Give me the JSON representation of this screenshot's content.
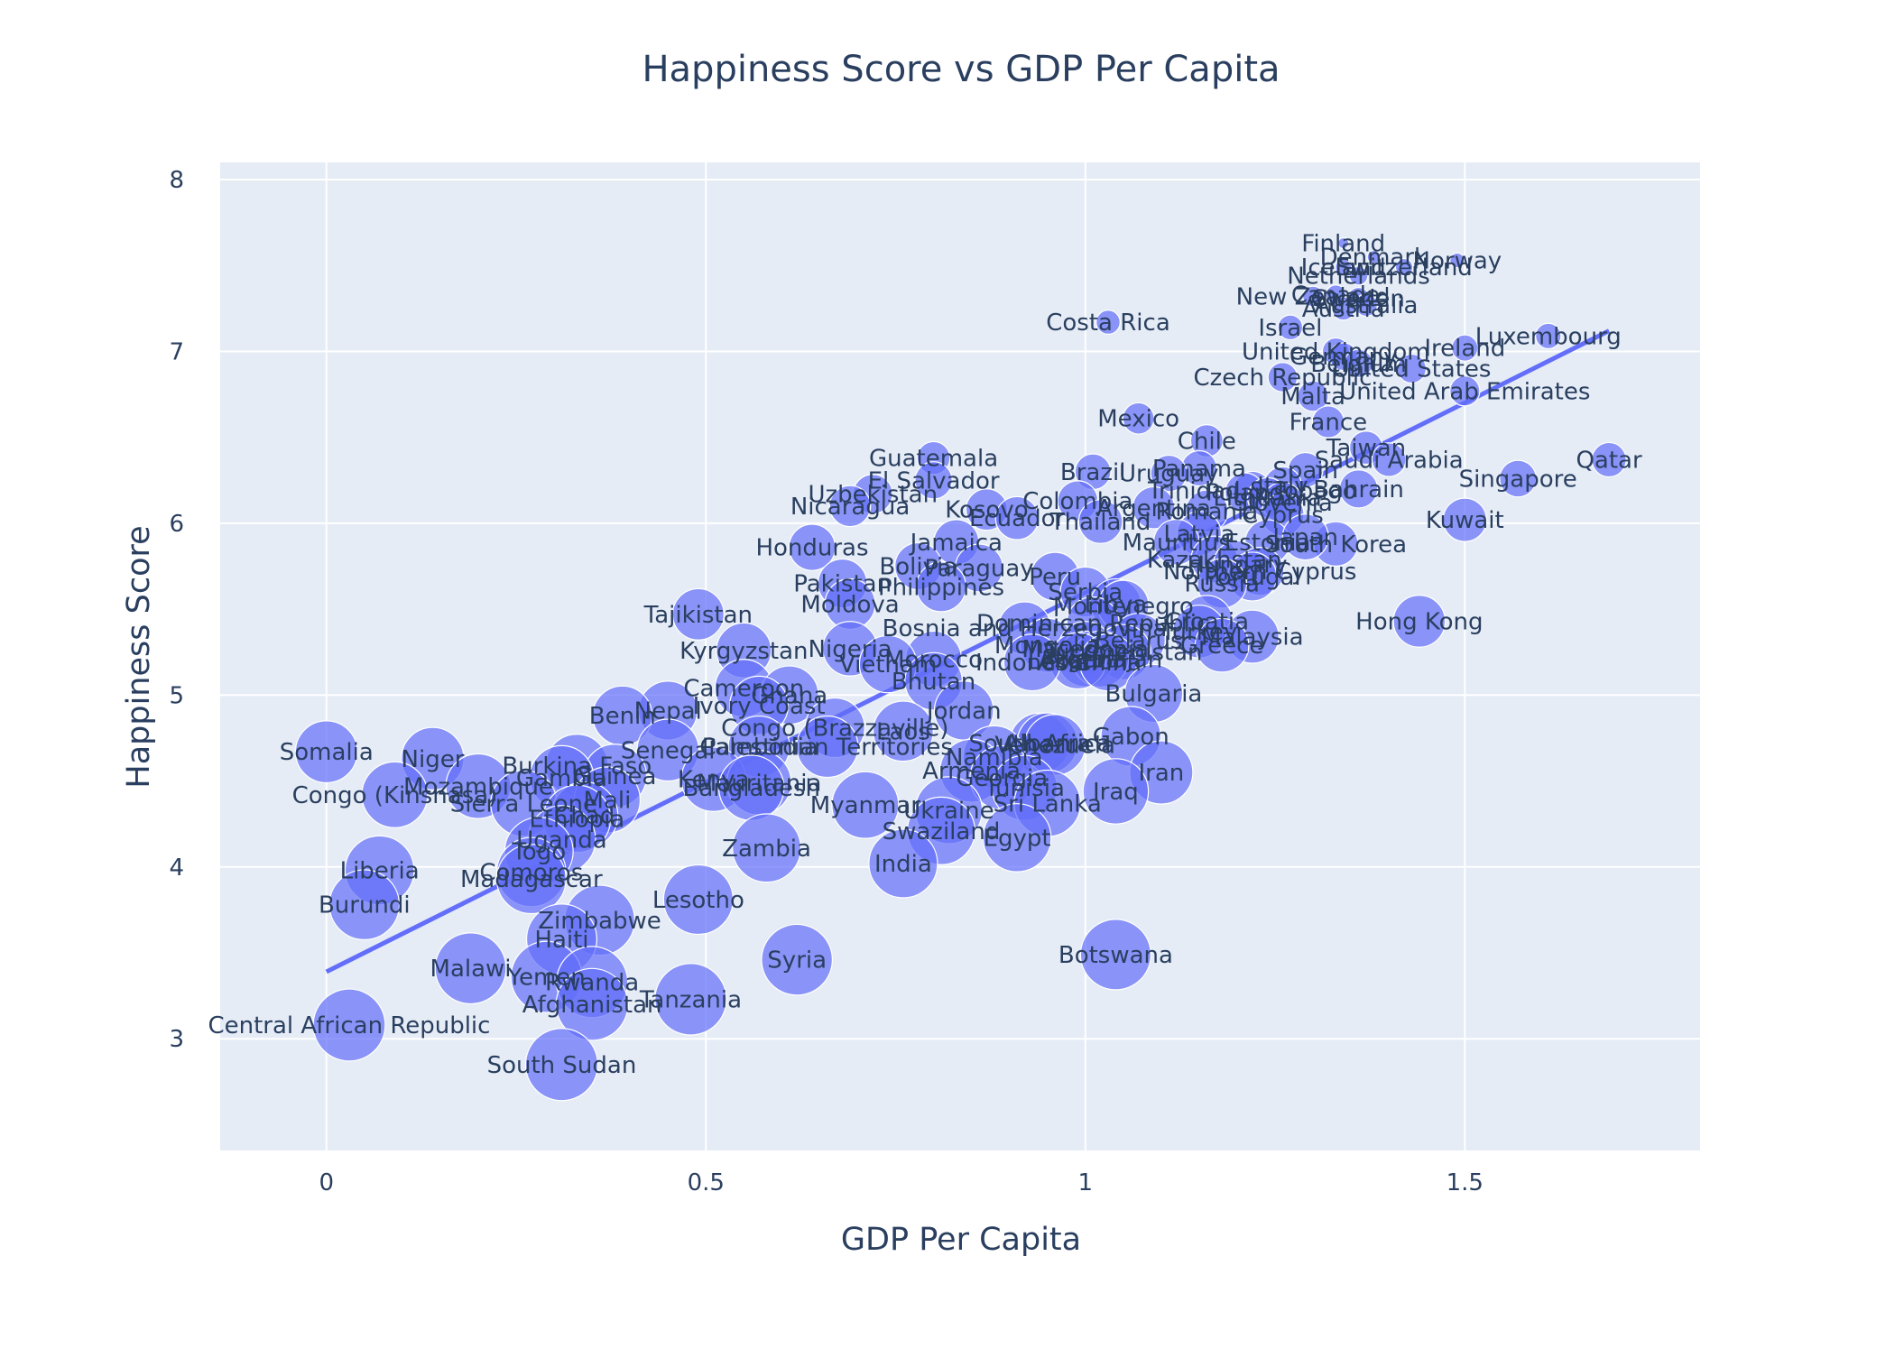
{
  "chart_data": {
    "type": "scatter",
    "title": "Happiness Score vs GDP Per Capita",
    "xlabel": "GDP Per Capita",
    "ylabel": "Happiness Score",
    "xlim": [
      -0.14,
      1.81
    ],
    "ylim": [
      2.35,
      8.1
    ],
    "x_ticks": [
      "0",
      "0.5",
      "1",
      "1.5"
    ],
    "x_tick_values": [
      0,
      0.5,
      1,
      1.5
    ],
    "y_ticks": [
      "3",
      "4",
      "5",
      "6",
      "7",
      "8"
    ],
    "y_tick_values": [
      3,
      4,
      5,
      6,
      7,
      8
    ],
    "grid": true,
    "marker_size_meaning": "larger bubbles for lower happiness ranks",
    "colors": {
      "plot_bg": "#e5ecf6",
      "grid": "#ffffff",
      "marker": "#636efa",
      "trendline": "#636efa",
      "text": "#2a3f5f"
    },
    "trendline": {
      "x": [
        0.0,
        1.69
      ],
      "y": [
        3.39,
        7.12
      ]
    },
    "points": [
      {
        "name": "Finland",
        "x": 1.34,
        "y": 7.63
      },
      {
        "name": "Denmark",
        "x": 1.38,
        "y": 7.55
      },
      {
        "name": "Norway",
        "x": 1.49,
        "y": 7.53
      },
      {
        "name": "Iceland",
        "x": 1.34,
        "y": 7.49
      },
      {
        "name": "Switzerland",
        "x": 1.42,
        "y": 7.49
      },
      {
        "name": "Netherlands",
        "x": 1.36,
        "y": 7.44
      },
      {
        "name": "Canada",
        "x": 1.33,
        "y": 7.33
      },
      {
        "name": "New Zealand",
        "x": 1.3,
        "y": 7.32
      },
      {
        "name": "Sweden",
        "x": 1.36,
        "y": 7.31
      },
      {
        "name": "Australia",
        "x": 1.37,
        "y": 7.27
      },
      {
        "name": "Austria",
        "x": 1.34,
        "y": 7.25
      },
      {
        "name": "Costa Rica",
        "x": 1.03,
        "y": 7.17
      },
      {
        "name": "Israel",
        "x": 1.27,
        "y": 7.14
      },
      {
        "name": "Luxembourg",
        "x": 1.61,
        "y": 7.09
      },
      {
        "name": "Ireland",
        "x": 1.5,
        "y": 7.02
      },
      {
        "name": "United Kingdom",
        "x": 1.33,
        "y": 7.0
      },
      {
        "name": "Germany",
        "x": 1.34,
        "y": 6.97
      },
      {
        "name": "Belgium",
        "x": 1.36,
        "y": 6.93
      },
      {
        "name": "United States",
        "x": 1.43,
        "y": 6.9
      },
      {
        "name": "Czech Republic",
        "x": 1.26,
        "y": 6.85
      },
      {
        "name": "United Arab Emirates",
        "x": 1.5,
        "y": 6.77
      },
      {
        "name": "Malta",
        "x": 1.3,
        "y": 6.74
      },
      {
        "name": "Mexico",
        "x": 1.07,
        "y": 6.61
      },
      {
        "name": "France",
        "x": 1.32,
        "y": 6.59
      },
      {
        "name": "Chile",
        "x": 1.16,
        "y": 6.48
      },
      {
        "name": "Guatemala",
        "x": 0.8,
        "y": 6.38
      },
      {
        "name": "Taiwan",
        "x": 1.37,
        "y": 6.44
      },
      {
        "name": "Saudi Arabia",
        "x": 1.4,
        "y": 6.37
      },
      {
        "name": "Qatar",
        "x": 1.69,
        "y": 6.37
      },
      {
        "name": "Spain",
        "x": 1.29,
        "y": 6.31
      },
      {
        "name": "Panama",
        "x": 1.15,
        "y": 6.32
      },
      {
        "name": "Brazil",
        "x": 1.01,
        "y": 6.3
      },
      {
        "name": "Uruguay",
        "x": 1.11,
        "y": 6.29
      },
      {
        "name": "Singapore",
        "x": 1.57,
        "y": 6.26
      },
      {
        "name": "El Salvador",
        "x": 0.8,
        "y": 6.25
      },
      {
        "name": "Italy",
        "x": 1.26,
        "y": 6.22
      },
      {
        "name": "Bahrain",
        "x": 1.36,
        "y": 6.2
      },
      {
        "name": "Trinidad & Tobago",
        "x": 1.22,
        "y": 6.19
      },
      {
        "name": "Poland",
        "x": 1.21,
        "y": 6.18
      },
      {
        "name": "Uzbekistan",
        "x": 0.72,
        "y": 6.17
      },
      {
        "name": "Lithuania",
        "x": 1.24,
        "y": 6.15
      },
      {
        "name": "Colombia",
        "x": 0.99,
        "y": 6.13
      },
      {
        "name": "Slovenia",
        "x": 1.26,
        "y": 6.12
      },
      {
        "name": "Nicaragua",
        "x": 0.69,
        "y": 6.1
      },
      {
        "name": "Kosovo",
        "x": 0.87,
        "y": 6.08
      },
      {
        "name": "Argentina",
        "x": 1.09,
        "y": 6.09
      },
      {
        "name": "Romania",
        "x": 1.16,
        "y": 6.07
      },
      {
        "name": "Cyprus",
        "x": 1.26,
        "y": 6.05
      },
      {
        "name": "Ecuador",
        "x": 0.91,
        "y": 6.03
      },
      {
        "name": "Kuwait",
        "x": 1.5,
        "y": 6.02
      },
      {
        "name": "Thailand",
        "x": 1.02,
        "y": 6.01
      },
      {
        "name": "Latvia",
        "x": 1.15,
        "y": 5.94
      },
      {
        "name": "South Korea",
        "x": 1.33,
        "y": 5.88
      },
      {
        "name": "Estonia",
        "x": 1.24,
        "y": 5.89
      },
      {
        "name": "Jamaica",
        "x": 0.83,
        "y": 5.89
      },
      {
        "name": "Mauritius",
        "x": 1.12,
        "y": 5.89
      },
      {
        "name": "Japan",
        "x": 1.29,
        "y": 5.92
      },
      {
        "name": "Honduras",
        "x": 0.64,
        "y": 5.86
      },
      {
        "name": "Kazakhstan",
        "x": 1.17,
        "y": 5.79
      },
      {
        "name": "Bolivia",
        "x": 0.78,
        "y": 5.75
      },
      {
        "name": "Hungary",
        "x": 1.2,
        "y": 5.76
      },
      {
        "name": "Paraguay",
        "x": 0.86,
        "y": 5.74
      },
      {
        "name": "Northern Cyprus",
        "x": 1.23,
        "y": 5.72
      },
      {
        "name": "Peru",
        "x": 0.96,
        "y": 5.69
      },
      {
        "name": "Portugal",
        "x": 1.22,
        "y": 5.69
      },
      {
        "name": "Pakistan",
        "x": 0.68,
        "y": 5.65
      },
      {
        "name": "Russia",
        "x": 1.18,
        "y": 5.65
      },
      {
        "name": "Philippines",
        "x": 0.81,
        "y": 5.63
      },
      {
        "name": "Serbia",
        "x": 1.0,
        "y": 5.6
      },
      {
        "name": "Moldova",
        "x": 0.69,
        "y": 5.53
      },
      {
        "name": "Libya",
        "x": 1.04,
        "y": 5.53
      },
      {
        "name": "Montenegro",
        "x": 1.05,
        "y": 5.52
      },
      {
        "name": "Tajikistan",
        "x": 0.49,
        "y": 5.47
      },
      {
        "name": "Croatia",
        "x": 1.16,
        "y": 5.43
      },
      {
        "name": "Hong Kong",
        "x": 1.44,
        "y": 5.43
      },
      {
        "name": "Dominican Republic",
        "x": 1.01,
        "y": 5.42
      },
      {
        "name": "Bosnia and Herzegovina",
        "x": 0.92,
        "y": 5.39
      },
      {
        "name": "Turkey",
        "x": 1.15,
        "y": 5.37
      },
      {
        "name": "Malaysia",
        "x": 1.22,
        "y": 5.34
      },
      {
        "name": "Belarus",
        "x": 1.07,
        "y": 5.32
      },
      {
        "name": "Greece",
        "x": 1.18,
        "y": 5.29
      },
      {
        "name": "Mongolia",
        "x": 0.95,
        "y": 5.29
      },
      {
        "name": "Macedonia",
        "x": 1.0,
        "y": 5.27
      },
      {
        "name": "Nigeria",
        "x": 0.69,
        "y": 5.27
      },
      {
        "name": "Kyrgyzstan",
        "x": 0.55,
        "y": 5.26
      },
      {
        "name": "Turkmenistan",
        "x": 1.05,
        "y": 5.25
      },
      {
        "name": "Algeria",
        "x": 1.0,
        "y": 5.21
      },
      {
        "name": "Morocco",
        "x": 0.8,
        "y": 5.21
      },
      {
        "name": "Azerbaijan",
        "x": 1.02,
        "y": 5.21
      },
      {
        "name": "Lebanon",
        "x": 0.99,
        "y": 5.2
      },
      {
        "name": "Indonesia",
        "x": 0.93,
        "y": 5.19
      },
      {
        "name": "China",
        "x": 1.03,
        "y": 5.19
      },
      {
        "name": "Vietnam",
        "x": 0.74,
        "y": 5.18
      },
      {
        "name": "Bhutan",
        "x": 0.8,
        "y": 5.08
      },
      {
        "name": "Cameroon",
        "x": 0.55,
        "y": 5.04
      },
      {
        "name": "Bulgaria",
        "x": 1.09,
        "y": 5.01
      },
      {
        "name": "Ghana",
        "x": 0.61,
        "y": 5.0
      },
      {
        "name": "Ivory Coast",
        "x": 0.57,
        "y": 4.94
      },
      {
        "name": "Nepal",
        "x": 0.45,
        "y": 4.91
      },
      {
        "name": "Jordan",
        "x": 0.84,
        "y": 4.91
      },
      {
        "name": "Benin",
        "x": 0.39,
        "y": 4.88
      },
      {
        "name": "Congo (Brazzaville)",
        "x": 0.67,
        "y": 4.81
      },
      {
        "name": "Gabon",
        "x": 1.06,
        "y": 4.76
      },
      {
        "name": "Laos",
        "x": 0.76,
        "y": 4.79
      },
      {
        "name": "South Africa",
        "x": 0.94,
        "y": 4.72
      },
      {
        "name": "Albania",
        "x": 0.95,
        "y": 4.72
      },
      {
        "name": "Venezuela",
        "x": 0.96,
        "y": 4.71
      },
      {
        "name": "Cambodia",
        "x": 0.57,
        "y": 4.7
      },
      {
        "name": "Palestinian Territories",
        "x": 0.66,
        "y": 4.7
      },
      {
        "name": "Senegal",
        "x": 0.45,
        "y": 4.68
      },
      {
        "name": "Somalia",
        "x": 0.0,
        "y": 4.67
      },
      {
        "name": "Namibia",
        "x": 0.88,
        "y": 4.64
      },
      {
        "name": "Niger",
        "x": 0.14,
        "y": 4.63
      },
      {
        "name": "Burkina Faso",
        "x": 0.33,
        "y": 4.59
      },
      {
        "name": "Armenia",
        "x": 0.85,
        "y": 4.56
      },
      {
        "name": "Iran",
        "x": 1.1,
        "y": 4.55
      },
      {
        "name": "Guinea",
        "x": 0.38,
        "y": 4.53
      },
      {
        "name": "Georgia",
        "x": 0.89,
        "y": 4.52
      },
      {
        "name": "Gambia",
        "x": 0.31,
        "y": 4.52
      },
      {
        "name": "Kenya",
        "x": 0.51,
        "y": 4.51
      },
      {
        "name": "Mauritania",
        "x": 0.57,
        "y": 4.49
      },
      {
        "name": "Mozambique",
        "x": 0.2,
        "y": 4.47
      },
      {
        "name": "Tunisia",
        "x": 0.92,
        "y": 4.46
      },
      {
        "name": "Bangladesh",
        "x": 0.56,
        "y": 4.46
      },
      {
        "name": "Iraq",
        "x": 1.04,
        "y": 4.44
      },
      {
        "name": "Congo (Kinshasa)",
        "x": 0.09,
        "y": 4.42
      },
      {
        "name": "Mali",
        "x": 0.37,
        "y": 4.39
      },
      {
        "name": "Sierra Leone",
        "x": 0.26,
        "y": 4.37
      },
      {
        "name": "Sri Lanka",
        "x": 0.95,
        "y": 4.37
      },
      {
        "name": "Myanmar",
        "x": 0.71,
        "y": 4.36
      },
      {
        "name": "Chad",
        "x": 0.34,
        "y": 4.3
      },
      {
        "name": "Ukraine",
        "x": 0.82,
        "y": 4.33
      },
      {
        "name": "Ethiopia",
        "x": 0.33,
        "y": 4.28
      },
      {
        "name": "Swaziland",
        "x": 0.81,
        "y": 4.21
      },
      {
        "name": "Uganda",
        "x": 0.31,
        "y": 4.16
      },
      {
        "name": "Egypt",
        "x": 0.91,
        "y": 4.17
      },
      {
        "name": "Zambia",
        "x": 0.58,
        "y": 4.11
      },
      {
        "name": "Togo",
        "x": 0.28,
        "y": 4.09
      },
      {
        "name": "India",
        "x": 0.76,
        "y": 4.02
      },
      {
        "name": "Liberia",
        "x": 0.07,
        "y": 3.98
      },
      {
        "name": "Comoros",
        "x": 0.27,
        "y": 3.97
      },
      {
        "name": "Madagascar",
        "x": 0.27,
        "y": 3.93
      },
      {
        "name": "Lesotho",
        "x": 0.49,
        "y": 3.81
      },
      {
        "name": "Burundi",
        "x": 0.05,
        "y": 3.78
      },
      {
        "name": "Zimbabwe",
        "x": 0.36,
        "y": 3.69
      },
      {
        "name": "Haiti",
        "x": 0.31,
        "y": 3.58
      },
      {
        "name": "Botswana",
        "x": 1.04,
        "y": 3.49
      },
      {
        "name": "Syria",
        "x": 0.62,
        "y": 3.46
      },
      {
        "name": "Malawi",
        "x": 0.19,
        "y": 3.41
      },
      {
        "name": "Yemen",
        "x": 0.29,
        "y": 3.36
      },
      {
        "name": "Rwanda",
        "x": 0.35,
        "y": 3.33
      },
      {
        "name": "Tanzania",
        "x": 0.48,
        "y": 3.23
      },
      {
        "name": "Afghanistan",
        "x": 0.35,
        "y": 3.2
      },
      {
        "name": "Central African Republic",
        "x": 0.03,
        "y": 3.08
      },
      {
        "name": "South Sudan",
        "x": 0.31,
        "y": 2.85
      }
    ]
  }
}
